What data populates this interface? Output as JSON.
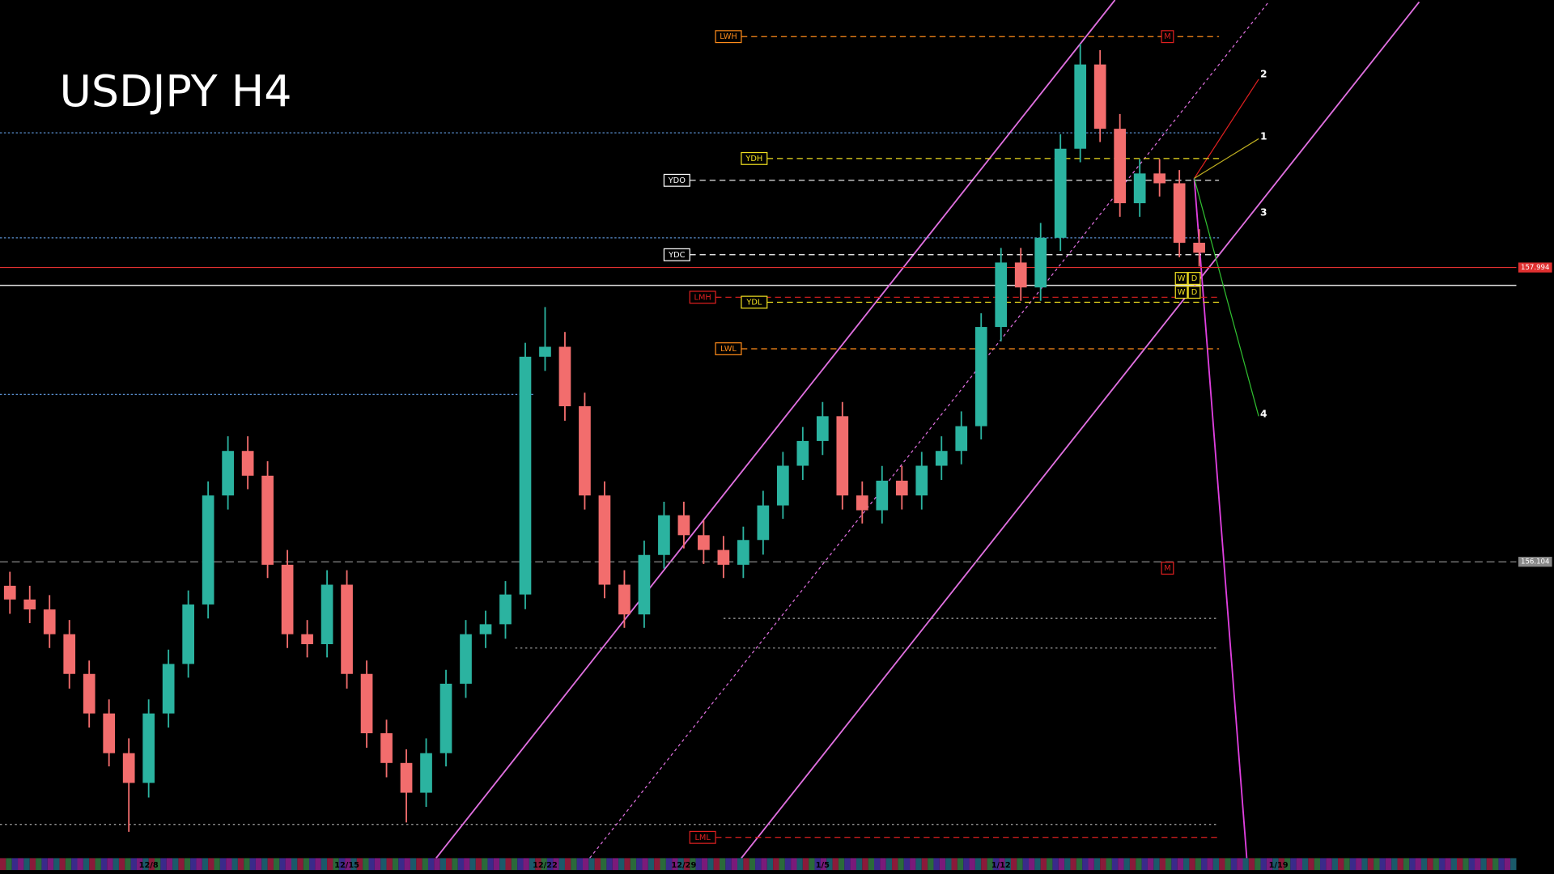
{
  "chart_data": {
    "type": "candlestick",
    "title": "USDJPY H4",
    "up_color": "#2bb3a0",
    "down_color": "#f26d6d",
    "ylim": [
      154.239,
      159.712
    ],
    "categories": [
      null,
      null,
      null,
      null,
      null,
      null,
      null,
      "12/8",
      null,
      null,
      null,
      null,
      null,
      null,
      null,
      null,
      null,
      "12/15",
      null,
      null,
      null,
      null,
      null,
      null,
      null,
      null,
      null,
      "12/22",
      null,
      null,
      null,
      null,
      null,
      null,
      "12/29",
      null,
      null,
      null,
      null,
      null,
      null,
      "1/5",
      null,
      null,
      null,
      null,
      null,
      null,
      null,
      null,
      "1/12",
      null,
      null,
      null,
      null,
      null,
      null,
      null,
      null,
      null,
      null,
      null,
      null,
      null,
      "1/19",
      null
    ],
    "open": [
      155.95,
      155.862,
      155.798,
      155.639,
      155.384,
      155.13,
      154.875,
      154.684,
      155.13,
      155.448,
      155.83,
      156.53,
      156.816,
      156.657,
      156.085,
      155.639,
      155.575,
      155.957,
      155.384,
      155.003,
      154.812,
      154.621,
      154.875,
      155.321,
      155.639,
      155.703,
      155.894,
      157.421,
      157.485,
      157.103,
      156.53,
      155.957,
      155.766,
      156.148,
      156.403,
      156.275,
      156.18,
      156.085,
      156.244,
      156.466,
      156.721,
      156.88,
      157.039,
      156.53,
      156.435,
      156.625,
      156.53,
      156.721,
      156.816,
      156.975,
      157.612,
      158.026,
      157.866,
      158.185,
      158.757,
      159.298,
      158.885,
      158.407,
      158.598,
      158.535,
      158.153,
      null,
      null,
      null,
      null,
      null
    ],
    "high": [
      156.04,
      155.95,
      155.89,
      155.73,
      155.47,
      155.22,
      154.97,
      155.22,
      155.54,
      155.92,
      156.62,
      156.91,
      156.91,
      156.75,
      156.18,
      155.73,
      156.05,
      156.05,
      155.47,
      155.09,
      154.9,
      154.97,
      155.41,
      155.73,
      155.79,
      155.98,
      157.51,
      157.74,
      157.58,
      157.19,
      156.62,
      156.05,
      156.24,
      156.49,
      156.49,
      156.37,
      156.27,
      156.33,
      156.56,
      156.81,
      156.97,
      157.13,
      157.13,
      156.62,
      156.72,
      156.72,
      156.81,
      156.91,
      157.07,
      157.7,
      158.12,
      158.12,
      158.28,
      158.85,
      159.43,
      159.39,
      158.98,
      158.69,
      158.69,
      158.62,
      158.24,
      null,
      null,
      null,
      null,
      null
    ],
    "low": [
      155.77,
      155.71,
      155.55,
      155.29,
      155.04,
      154.79,
      154.37,
      154.59,
      155.04,
      155.36,
      155.74,
      156.44,
      156.57,
      156.0,
      155.55,
      155.49,
      155.49,
      155.29,
      154.91,
      154.72,
      154.43,
      154.53,
      154.79,
      155.23,
      155.55,
      155.61,
      155.8,
      157.33,
      157.01,
      156.44,
      155.87,
      155.68,
      155.68,
      156.06,
      156.19,
      156.09,
      156.0,
      156.0,
      156.15,
      156.38,
      156.63,
      156.79,
      156.44,
      156.35,
      156.35,
      156.44,
      156.44,
      156.63,
      156.73,
      156.89,
      157.52,
      157.78,
      157.78,
      158.1,
      158.67,
      158.8,
      158.32,
      158.32,
      158.45,
      158.06,
      158.0,
      null,
      null,
      null,
      null,
      null
    ],
    "close": [
      155.862,
      155.798,
      155.639,
      155.384,
      155.13,
      154.875,
      154.684,
      155.13,
      155.448,
      155.83,
      156.53,
      156.816,
      156.657,
      156.085,
      155.639,
      155.575,
      155.957,
      155.384,
      155.003,
      154.812,
      154.621,
      154.875,
      155.321,
      155.639,
      155.703,
      155.894,
      157.421,
      157.485,
      157.103,
      156.53,
      155.957,
      155.766,
      156.148,
      156.403,
      156.275,
      156.18,
      156.085,
      156.244,
      156.466,
      156.721,
      156.88,
      157.039,
      156.53,
      156.435,
      156.625,
      156.53,
      156.721,
      156.816,
      156.975,
      157.612,
      158.026,
      157.866,
      158.185,
      158.757,
      159.298,
      158.885,
      158.407,
      158.598,
      158.535,
      158.153,
      158.089,
      null,
      null,
      null,
      null,
      null
    ],
    "price_lines": [
      {
        "value": 157.994,
        "color": "#e03030"
      },
      {
        "value": 156.104,
        "color": "#888888"
      }
    ],
    "levels": [
      {
        "label": "LWH",
        "value": 159.477,
        "color": "#ff8c1a"
      },
      {
        "label": "YDH",
        "value": 158.694,
        "color": "#f0e020"
      },
      {
        "label": "YDO",
        "value": 158.554,
        "color": "#ffffff"
      },
      {
        "label": "YDC",
        "value": 158.076,
        "color": "#ffffff"
      },
      {
        "label": "LMH",
        "value": 157.803,
        "color": "#e02020"
      },
      {
        "label": "YDL",
        "value": 157.771,
        "color": "#f0e020"
      },
      {
        "label": "LWL",
        "value": 157.472,
        "color": "#ff8c1a"
      },
      {
        "label": "LML",
        "value": 154.334,
        "color": "#e02020"
      }
    ],
    "markers": [
      {
        "label": "M",
        "value": 159.477
      },
      {
        "label": "M",
        "value": 156.063
      },
      {
        "label": "W",
        "value": 157.924
      },
      {
        "label": "D",
        "value": 157.924
      },
      {
        "label": "W",
        "value": 157.835
      },
      {
        "label": "D",
        "value": 157.835
      }
    ],
    "waves": [
      {
        "label": "2",
        "value": 159.235
      },
      {
        "label": "1",
        "value": 158.834
      },
      {
        "label": "3",
        "value": 158.344
      },
      {
        "label": "4",
        "value": 157.052
      }
    ]
  }
}
